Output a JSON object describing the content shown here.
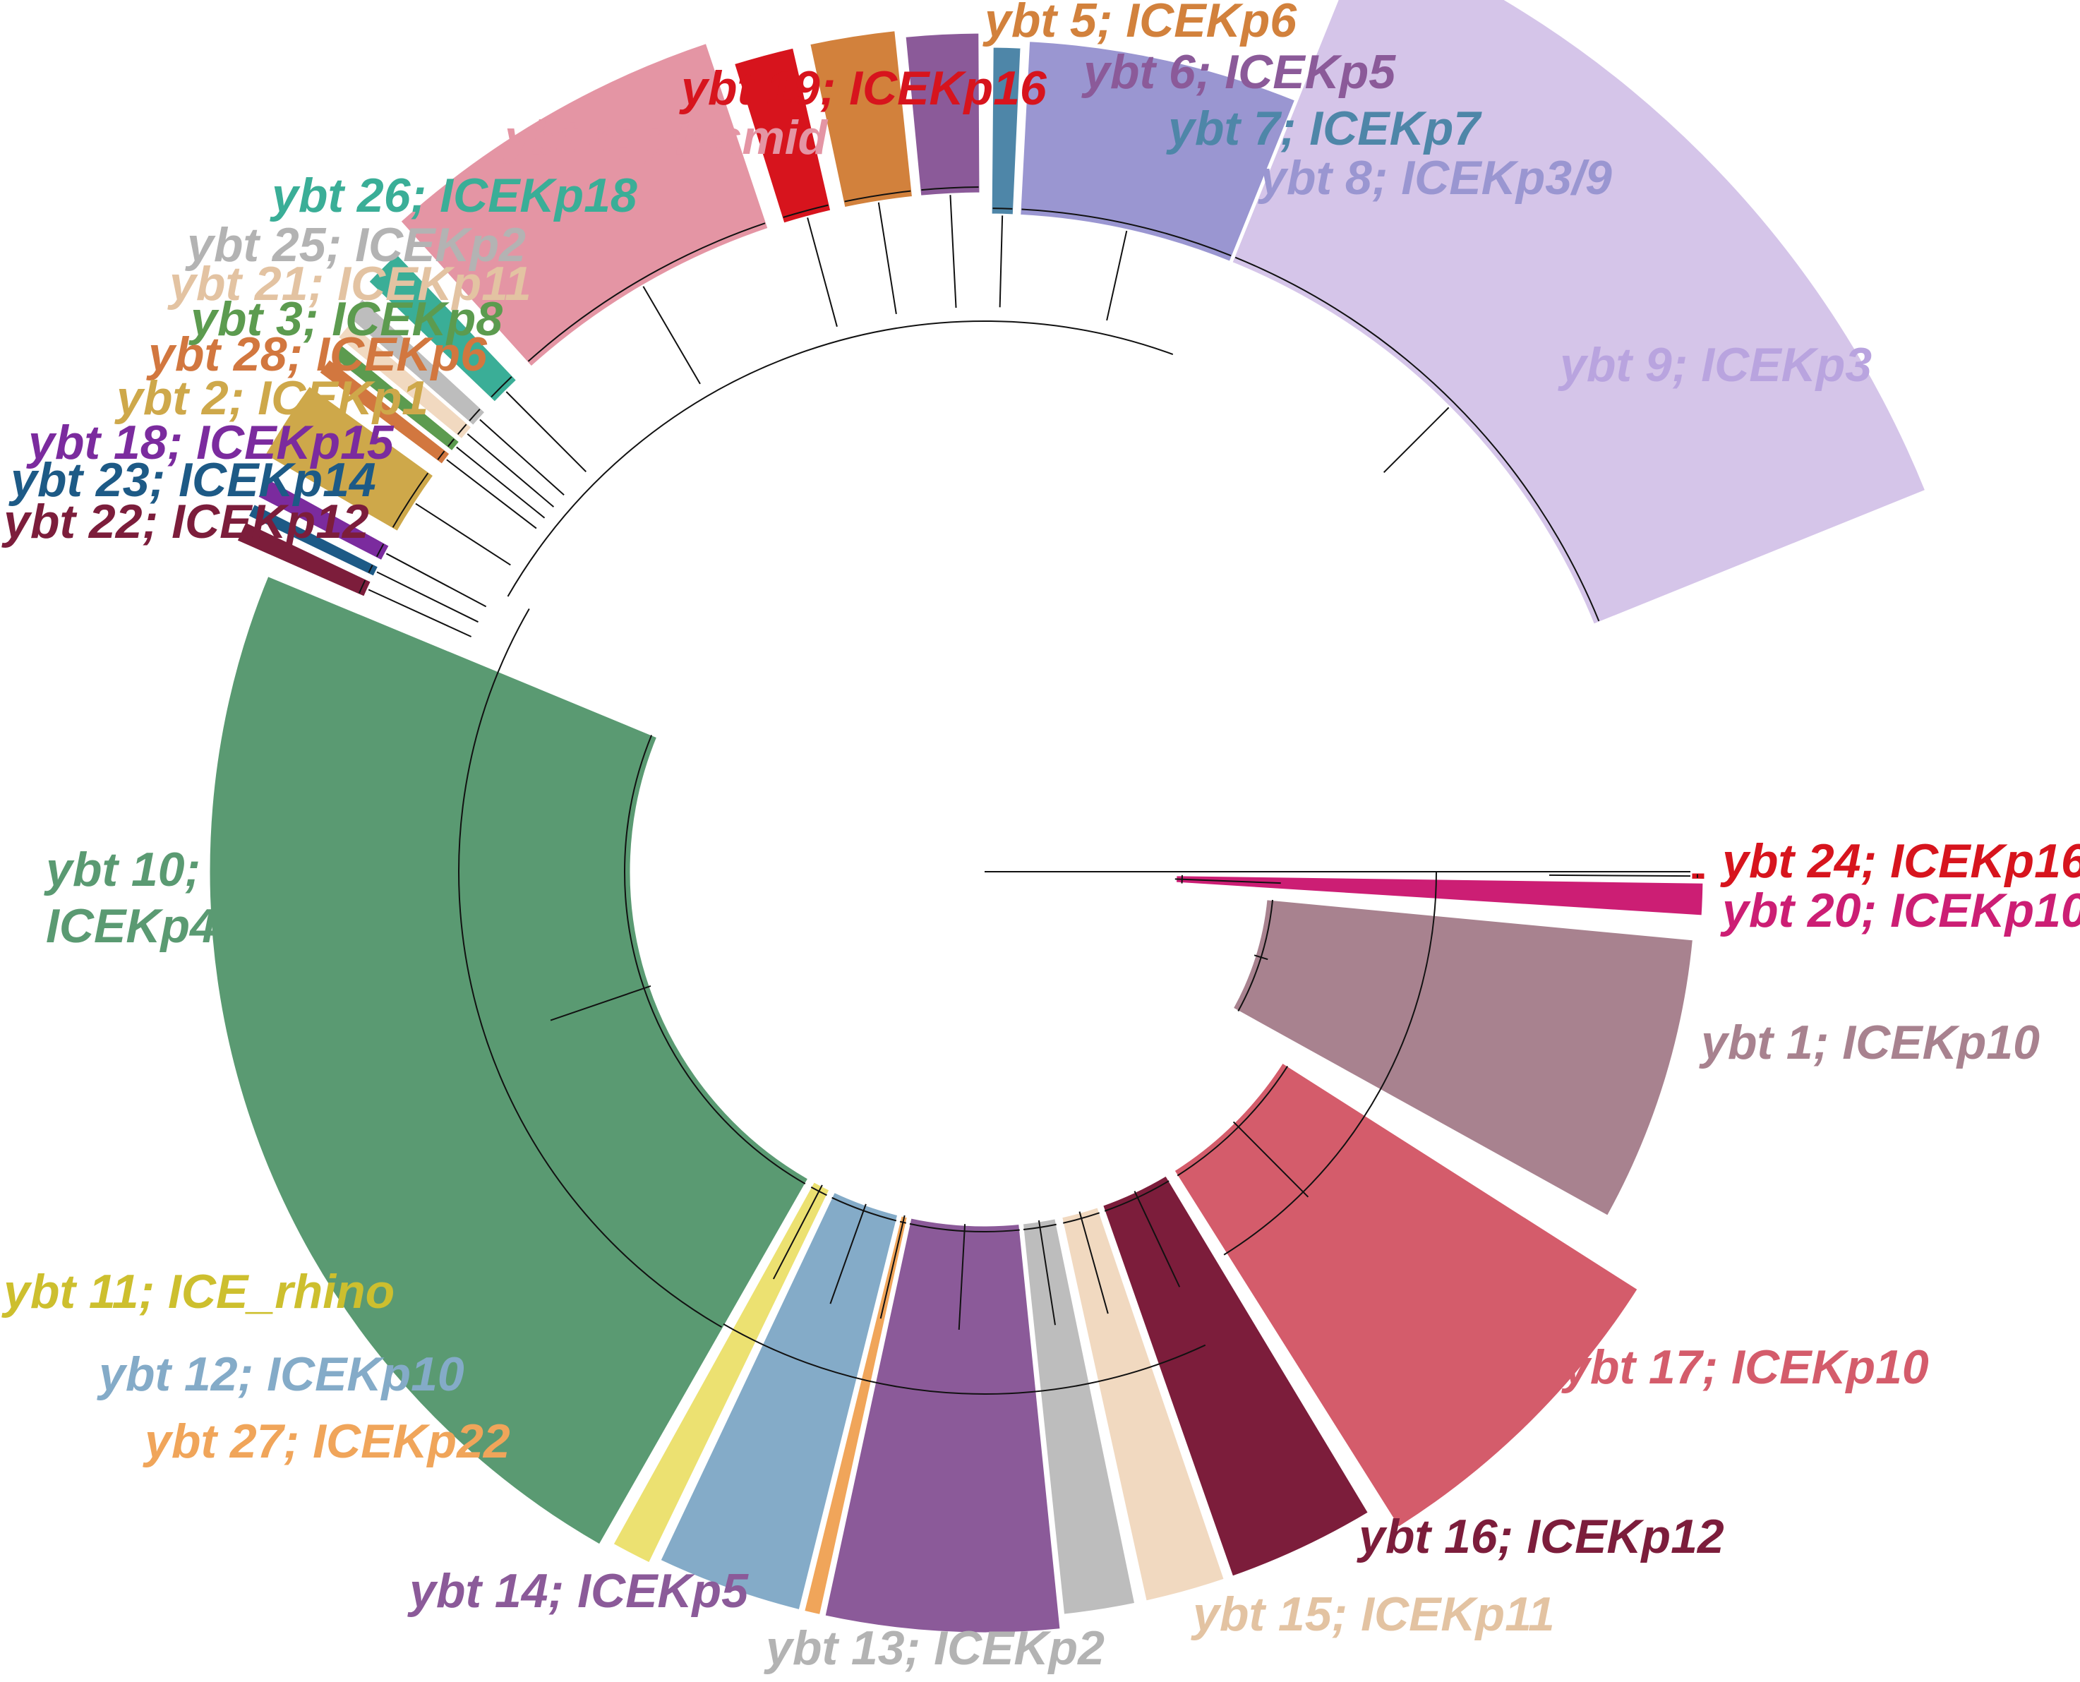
{
  "figure": {
    "background": "#ffffff",
    "tree_color": "#111111"
  },
  "clades": [
    {
      "id": "ybt9",
      "label": "ybt 9; ICEKp3",
      "color": "#d5c5e9",
      "a0": 22.0,
      "a1": 68.0,
      "r0": 930,
      "r1": 1440
    },
    {
      "id": "ybt8",
      "label": "ybt 8; ICEKp3/9",
      "color": "#9a96d1",
      "a0": 3.0,
      "a1": 22.0,
      "r0": 930,
      "r1": 1180
    },
    {
      "id": "ybt7",
      "label": "ybt 7; ICEKp7",
      "color": "#4e86a8",
      "a0": 0.5,
      "a1": 2.6,
      "r0": 930,
      "r1": 1170
    },
    {
      "id": "ybt6",
      "label": "ybt 6; ICEKp5",
      "color": "#8b5a99",
      "a0": -5.5,
      "a1": -0.3,
      "r0": 960,
      "r1": 1190
    },
    {
      "id": "ybt5",
      "label": "ybt 5; ICEKp6",
      "color": "#d2813c",
      "a0": -12.0,
      "a1": -6.0,
      "r0": 960,
      "r1": 1200
    },
    {
      "id": "ybt19",
      "label": "ybt 19; ICEKp16",
      "color": "#d7141d",
      "a0": -17.3,
      "a1": -13.0,
      "r0": 960,
      "r1": 1200
    },
    {
      "id": "ybt4",
      "label": "ybt 4; plasmid",
      "color": "#e495a4",
      "a0": -42.0,
      "a1": -18.5,
      "r0": 960,
      "r1": 1240
    },
    {
      "id": "ybt26",
      "label": "ybt 26; ICEKp18",
      "color": "#3aae97",
      "a0": -46.3,
      "a1": -43.5,
      "r0": 960,
      "r1": 1210
    },
    {
      "id": "ybt25",
      "label": "ybt 25; ICEKp2",
      "color": "#bdbdbd",
      "a0": -49.0,
      "a1": -47.3,
      "r0": 960,
      "r1": 1200
    },
    {
      "id": "ybt21",
      "label": "ybt 21; ICEKp11",
      "color": "#f1d9c0",
      "a0": -50.5,
      "a1": -49.0,
      "r0": 960,
      "r1": 1190
    },
    {
      "id": "ybt3",
      "label": "ybt 3; ICEKp8",
      "color": "#5c9b4f",
      "a0": -51.8,
      "a1": -50.6,
      "r0": 960,
      "r1": 1180
    },
    {
      "id": "ybt28",
      "label": "ybt 28; ICEKp6",
      "color": "#d2773f",
      "a0": -53.2,
      "a1": -51.9,
      "r0": 960,
      "r1": 1180
    },
    {
      "id": "ybt2",
      "label": "ybt 2; ICEKp1",
      "color": "#cea84a",
      "a0": -60.0,
      "a1": -54.2,
      "r0": 960,
      "r1": 1180
    },
    {
      "id": "ybt18",
      "label": "ybt 18; ICEKp15",
      "color": "#7b2b9e",
      "a0": -62.8,
      "a1": -61.2,
      "r0": 960,
      "r1": 1160
    },
    {
      "id": "ybt23",
      "label": "ybt 23; ICEKp14",
      "color": "#1d5a86",
      "a0": -64.3,
      "a1": -63.2,
      "r0": 960,
      "r1": 1160
    },
    {
      "id": "ybt22",
      "label": "ybt 22; ICEKp12",
      "color": "#7c1d3b",
      "a0": -66.2,
      "a1": -64.6,
      "r0": 960,
      "r1": 1160
    },
    {
      "id": "ybt10",
      "label": "ybt 10; ICEKp4",
      "color": "#5a9a72",
      "a0": -150.3,
      "a1": -67.5,
      "r0": 500,
      "r1": 1100
    },
    {
      "id": "ybt11",
      "label": "ybt 11; ICE_rhino",
      "color": "#ece171",
      "a0": -154.2,
      "a1": -151.0,
      "r0": 500,
      "r1": 1090
    },
    {
      "id": "ybt12",
      "label": "ybt 12; ICEKp10",
      "color": "#84abc8",
      "a0": -166.0,
      "a1": -154.7,
      "r0": 500,
      "r1": 1080
    },
    {
      "id": "ybt27",
      "label": "ybt 27; ICEKp22",
      "color": "#f0a55a",
      "a0": -167.6,
      "a1": -166.2,
      "r0": 500,
      "r1": 1080
    },
    {
      "id": "ybt14",
      "label": "ybt 14; ICEKp5",
      "color": "#8b5a99",
      "a0": -185.8,
      "a1": -167.8,
      "r0": 500,
      "r1": 1080
    },
    {
      "id": "ybt13",
      "label": "ybt 13; ICEKp2",
      "color": "#bdbdbd",
      "a0": -191.7,
      "a1": -186.0,
      "r0": 500,
      "r1": 1060
    },
    {
      "id": "ybt15",
      "label": "ybt 15; ICEKp11",
      "color": "#f1d9c0",
      "a0": -198.8,
      "a1": -192.4,
      "r0": 500,
      "r1": 1060
    },
    {
      "id": "ybt16",
      "label": "ybt 16; ICEKp12",
      "color": "#7c1d3b",
      "a0": -211.0,
      "a1": -199.3,
      "r0": 500,
      "r1": 1060
    },
    {
      "id": "ybt17",
      "label": "ybt 17; ICEKp10",
      "color": "#d45c6b",
      "a0": -237.5,
      "a1": -212.2,
      "r0": 500,
      "r1": 1100
    },
    {
      "id": "ybt1",
      "label": "ybt 1; ICEKp10",
      "color": "#a8828f",
      "a0": -264.6,
      "a1": -241.0,
      "r0": 400,
      "r1": 1010
    },
    {
      "id": "ybt20",
      "label": "ybt 20; ICEKp10",
      "color": "#cc1e74",
      "a0": -269.2,
      "a1": -266.4,
      "r0": 270,
      "r1": 1020
    },
    {
      "id": "ybt24",
      "label": "ybt 24; ICEKp16",
      "color": "#d7141d",
      "a0": -270.0,
      "a1": -269.3,
      "r0": 1000,
      "r1": 1022
    }
  ],
  "labels": [
    {
      "id": "ybt5",
      "lines": [
        "ybt 5; ICEKp6"
      ]
    },
    {
      "id": "ybt6",
      "lines": [
        "ybt 6; ICEKp5"
      ]
    },
    {
      "id": "ybt19",
      "lines": [
        "ybt 19; ICEKp16"
      ]
    },
    {
      "id": "ybt7",
      "lines": [
        "ybt 7; ICEKp7"
      ]
    },
    {
      "id": "ybt4",
      "lines": [
        "ybt 4; plasmid"
      ]
    },
    {
      "id": "ybt8",
      "lines": [
        "ybt 8; ICEKp3/9"
      ]
    },
    {
      "id": "ybt26",
      "lines": [
        "ybt 26; ICEKp18"
      ]
    },
    {
      "id": "ybt25",
      "lines": [
        "ybt 25; ICEKp2"
      ]
    },
    {
      "id": "ybt21",
      "lines": [
        "ybt 21; ICEKp11"
      ]
    },
    {
      "id": "ybt3",
      "lines": [
        "ybt 3; ICEKp8"
      ]
    },
    {
      "id": "ybt9",
      "lines": [
        "ybt 9; ICEKp3"
      ]
    },
    {
      "id": "ybt28",
      "lines": [
        "ybt 28; ICEKp6"
      ]
    },
    {
      "id": "ybt2",
      "lines": [
        "ybt 2; ICEKp1"
      ]
    },
    {
      "id": "ybt18",
      "lines": [
        "ybt 18; ICEKp15"
      ]
    },
    {
      "id": "ybt23",
      "lines": [
        "ybt 23; ICEKp14"
      ]
    },
    {
      "id": "ybt22",
      "lines": [
        "ybt 22; ICEKp12"
      ]
    },
    {
      "id": "ybt10",
      "lines": [
        "ybt 10;",
        "ICEKp4"
      ]
    },
    {
      "id": "ybt24",
      "lines": [
        "ybt 24; ICEKp16"
      ]
    },
    {
      "id": "ybt20",
      "lines": [
        "ybt 20; ICEKp10"
      ]
    },
    {
      "id": "ybt1",
      "lines": [
        "ybt 1; ICEKp10"
      ]
    },
    {
      "id": "ybt17",
      "lines": [
        "ybt 17; ICEKp10"
      ]
    },
    {
      "id": "ybt11",
      "lines": [
        "ybt 11; ICE_rhino"
      ]
    },
    {
      "id": "ybt12",
      "lines": [
        "ybt 12; ICEKp10"
      ]
    },
    {
      "id": "ybt27",
      "lines": [
        "ybt 27; ICEKp22"
      ]
    },
    {
      "id": "ybt16",
      "lines": [
        "ybt 16; ICEKp12"
      ]
    },
    {
      "id": "ybt14",
      "lines": [
        "ybt 14; ICEKp5"
      ]
    },
    {
      "id": "ybt15",
      "lines": [
        "ybt 15; ICEKp11"
      ]
    },
    {
      "id": "ybt13",
      "lines": [
        "ybt 13; ICEKp2"
      ]
    }
  ]
}
